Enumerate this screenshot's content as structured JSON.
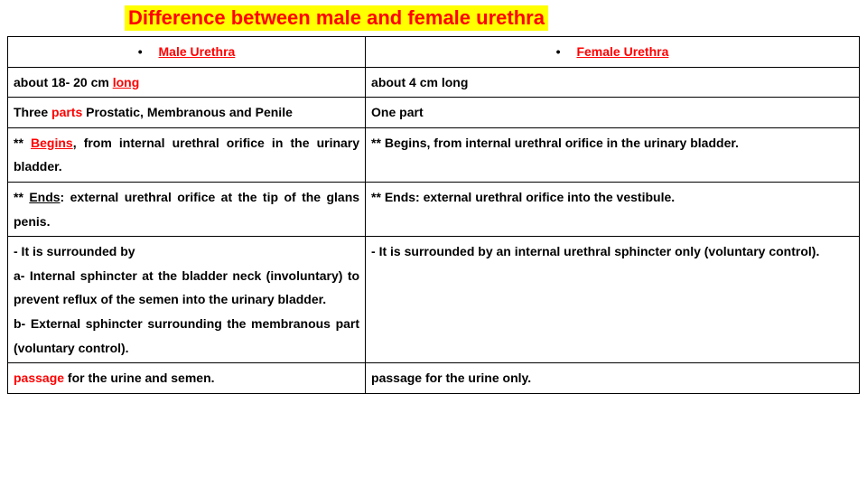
{
  "title": "Difference between male and female urethra",
  "colors": {
    "title_bg": "#ffff00",
    "title_fg": "#ff0000",
    "accent": "#ff0000",
    "text": "#000000",
    "border": "#000000",
    "background": "#ffffff"
  },
  "typography": {
    "title_fontsize": 22,
    "cell_fontsize": 14,
    "font_family": "Arial",
    "font_weight": "bold",
    "line_height": 1.9
  },
  "table": {
    "col_widths_pct": [
      42,
      58
    ],
    "headers": {
      "left": "Male Urethra",
      "right": "Female Urethra"
    },
    "rows": [
      {
        "left_parts": [
          {
            "t": "about 18- 20 cm "
          },
          {
            "t": "long",
            "red": true,
            "u": true
          }
        ],
        "right_parts": [
          {
            "t": "about 4 cm long"
          }
        ]
      },
      {
        "left_parts": [
          {
            "t": "Three "
          },
          {
            "t": "parts",
            "red": true
          },
          {
            "t": " Prostatic, Membranous and Penile"
          }
        ],
        "right_parts": [
          {
            "t": "One part"
          }
        ]
      },
      {
        "left_parts": [
          {
            "t": "** "
          },
          {
            "t": "Begins",
            "red": true,
            "u": true
          },
          {
            "t": ", from internal urethral orifice in the urinary bladder."
          }
        ],
        "right_parts": [
          {
            "t": "** Begins, from internal urethral orifice in the urinary bladder."
          }
        ]
      },
      {
        "left_parts": [
          {
            "t": "** "
          },
          {
            "t": "Ends",
            "u": true
          },
          {
            "t": ": external urethral orifice at the tip of the glans penis."
          }
        ],
        "right_parts": [
          {
            "t": "** Ends: external urethral orifice into the vestibule."
          }
        ]
      },
      {
        "left_parts": [
          {
            "t": "- It is surrounded by\na- Internal sphincter at the bladder neck (involuntary) to prevent reflux of the semen into the urinary bladder.\nb- External sphincter surrounding the membranous part (voluntary control)."
          }
        ],
        "right_parts": [
          {
            "t": "- It is surrounded by an internal urethral sphincter only (voluntary control)."
          }
        ]
      },
      {
        "left_parts": [
          {
            "t": "passage",
            "red": true
          },
          {
            "t": " for the urine and semen."
          }
        ],
        "right_parts": [
          {
            "t": "passage for the urine only."
          }
        ]
      }
    ]
  }
}
